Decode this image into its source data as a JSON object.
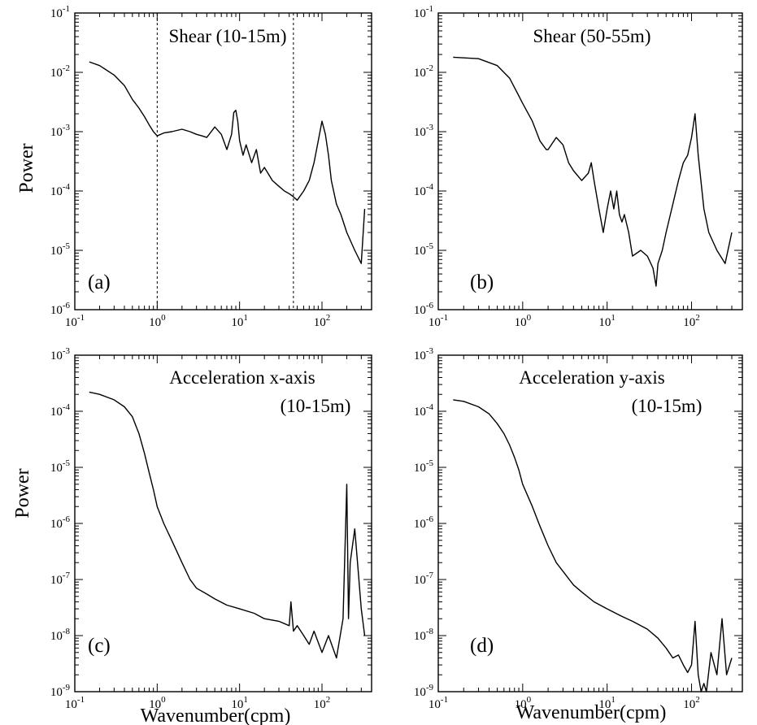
{
  "figure": {
    "xlabel": "Wavenumber(cpm)",
    "ylabel": "Power"
  },
  "chart_data": [
    {
      "type": "line",
      "panel_tag": "(a)",
      "title": "Shear (10-15m)",
      "subtitle": "",
      "xlabel": "",
      "ylabel": "Power",
      "xscale": "log",
      "yscale": "log",
      "xlim": [
        0.1,
        400
      ],
      "ylim": [
        1e-06,
        0.1
      ],
      "x_tick_labels": [
        "10-1",
        "100",
        "101",
        "102"
      ],
      "y_tick_labels": [
        "10-6",
        "10-5",
        "10-4",
        "10-3",
        "10-2",
        "10-1"
      ],
      "reference_lines_x": [
        1.0,
        45
      ],
      "series": [
        {
          "x": [
            0.15,
            0.2,
            0.3,
            0.4,
            0.5,
            0.6,
            0.7,
            0.8,
            0.9,
            1.0,
            1.2,
            1.5,
            2.0,
            2.5,
            3.0,
            3.5,
            4.0,
            5.0,
            6.0,
            7.0,
            8.0,
            8.5,
            9.0,
            9.5,
            10,
            11,
            12,
            14,
            16,
            18,
            20,
            25,
            30,
            35,
            40,
            45,
            50,
            60,
            70,
            80,
            90,
            100,
            110,
            120,
            130,
            150,
            170,
            200,
            250,
            300,
            330
          ],
          "y": [
            0.015,
            0.013,
            0.009,
            0.006,
            0.0035,
            0.0025,
            0.0018,
            0.0013,
            0.001,
            0.00085,
            0.00095,
            0.001,
            0.0011,
            0.001,
            0.0009,
            0.00085,
            0.0008,
            0.0012,
            0.0009,
            0.0005,
            0.0009,
            0.0021,
            0.0023,
            0.0015,
            0.0007,
            0.0004,
            0.0006,
            0.0003,
            0.0005,
            0.0002,
            0.00025,
            0.00015,
            0.00012,
            0.0001,
            9e-05,
            8e-05,
            7e-05,
            0.0001,
            0.00015,
            0.0003,
            0.0007,
            0.0015,
            0.0009,
            0.0004,
            0.00015,
            6e-05,
            4e-05,
            2e-05,
            1e-05,
            6e-06,
            5e-05
          ]
        }
      ]
    },
    {
      "type": "line",
      "panel_tag": "(b)",
      "title": "Shear (50-55m)",
      "subtitle": "",
      "xlabel": "",
      "ylabel": "",
      "xscale": "log",
      "yscale": "log",
      "xlim": [
        0.1,
        400
      ],
      "ylim": [
        1e-06,
        0.1
      ],
      "x_tick_labels": [
        "10-1",
        "100",
        "101",
        "102"
      ],
      "y_tick_labels": [
        "10-6",
        "10-5",
        "10-4",
        "10-3",
        "10-2",
        "10-1"
      ],
      "reference_lines_x": [],
      "series": [
        {
          "x": [
            0.15,
            0.3,
            0.5,
            0.7,
            0.9,
            1.0,
            1.3,
            1.6,
            1.9,
            2.0,
            2.5,
            3.0,
            3.5,
            4.0,
            5.0,
            6.0,
            6.5,
            7.0,
            8.0,
            9.0,
            10,
            11,
            12,
            13,
            14,
            15,
            16,
            18,
            20,
            25,
            30,
            35,
            38,
            40,
            45,
            50,
            60,
            70,
            80,
            90,
            100,
            110,
            120,
            140,
            160,
            200,
            250,
            300
          ],
          "y": [
            0.018,
            0.017,
            0.013,
            0.008,
            0.004,
            0.003,
            0.0015,
            0.0007,
            0.0005,
            0.0005,
            0.0008,
            0.0006,
            0.0003,
            0.00022,
            0.00015,
            0.0002,
            0.0003,
            0.00015,
            5e-05,
            2e-05,
            5e-05,
            0.0001,
            5e-05,
            0.0001,
            4e-05,
            3e-05,
            4e-05,
            2e-05,
            8e-06,
            1e-05,
            8e-06,
            5e-06,
            2.5e-06,
            6e-06,
            1e-05,
            2e-05,
            6e-05,
            0.00015,
            0.0003,
            0.0004,
            0.0008,
            0.002,
            0.0004,
            5e-05,
            2e-05,
            1e-05,
            6e-06,
            2e-05
          ]
        }
      ]
    },
    {
      "type": "line",
      "panel_tag": "(c)",
      "title": "Acceleration x-axis",
      "subtitle": "(10-15m)",
      "xlabel": "Wavenumber(cpm)",
      "ylabel": "Power",
      "xscale": "log",
      "yscale": "log",
      "xlim": [
        0.1,
        400
      ],
      "ylim": [
        1e-09,
        0.001
      ],
      "x_tick_labels": [
        "10-1",
        "100",
        "101",
        "102"
      ],
      "y_tick_labels": [
        "10-9",
        "10-8",
        "10-7",
        "10-6",
        "10-5",
        "10-4",
        "10-3"
      ],
      "reference_lines_x": [],
      "series": [
        {
          "x": [
            0.15,
            0.2,
            0.3,
            0.4,
            0.5,
            0.6,
            0.7,
            0.8,
            0.9,
            1.0,
            1.2,
            1.5,
            2.0,
            2.5,
            3.0,
            4.0,
            5.0,
            7.0,
            10,
            15,
            20,
            30,
            40,
            42,
            45,
            50,
            60,
            70,
            80,
            100,
            120,
            150,
            180,
            200,
            210,
            220,
            250,
            270,
            300,
            330
          ],
          "y": [
            0.00022,
            0.0002,
            0.00016,
            0.00012,
            8e-05,
            4e-05,
            1.8e-05,
            8e-06,
            4e-06,
            2e-06,
            1e-06,
            5e-07,
            2e-07,
            1e-07,
            7e-08,
            5.5e-08,
            4.5e-08,
            3.5e-08,
            3e-08,
            2.5e-08,
            2e-08,
            1.8e-08,
            1.5e-08,
            4e-08,
            1.2e-08,
            1.5e-08,
            1e-08,
            7e-09,
            1.2e-08,
            5e-09,
            1e-08,
            4e-09,
            2e-08,
            5e-06,
            2e-08,
            2e-07,
            8e-07,
            2e-07,
            3e-08,
            1e-08
          ]
        }
      ]
    },
    {
      "type": "line",
      "panel_tag": "(d)",
      "title": "Acceleration y-axis",
      "subtitle": "(10-15m)",
      "xlabel": "Wavenumber(cpm)",
      "ylabel": "",
      "xscale": "log",
      "yscale": "log",
      "xlim": [
        0.1,
        400
      ],
      "ylim": [
        1e-09,
        0.001
      ],
      "x_tick_labels": [
        "10-1",
        "100",
        "101",
        "102"
      ],
      "y_tick_labels": [
        "10-9",
        "10-8",
        "10-7",
        "10-6",
        "10-5",
        "10-4",
        "10-3"
      ],
      "reference_lines_x": [],
      "series": [
        {
          "x": [
            0.15,
            0.2,
            0.3,
            0.4,
            0.5,
            0.6,
            0.7,
            0.8,
            0.9,
            1.0,
            1.3,
            1.6,
            2.0,
            2.5,
            3.0,
            4.0,
            5.0,
            7.0,
            10,
            15,
            20,
            30,
            40,
            50,
            60,
            70,
            80,
            90,
            100,
            110,
            120,
            130,
            140,
            150,
            170,
            200,
            230,
            260,
            300
          ],
          "y": [
            0.00016,
            0.00015,
            0.00012,
            9e-05,
            6e-05,
            4e-05,
            2.5e-05,
            1.5e-05,
            9e-06,
            5e-06,
            2e-06,
            9e-07,
            4e-07,
            2e-07,
            1.4e-07,
            8e-08,
            6e-08,
            4e-08,
            3e-08,
            2.2e-08,
            1.8e-08,
            1.3e-08,
            9e-09,
            6e-09,
            4e-09,
            4.5e-09,
            3e-09,
            2.2e-09,
            3e-09,
            1.8e-08,
            2e-09,
            1e-09,
            1.4e-09,
            1e-09,
            5e-09,
            2e-09,
            2e-08,
            2e-09,
            4e-09
          ]
        }
      ]
    }
  ]
}
